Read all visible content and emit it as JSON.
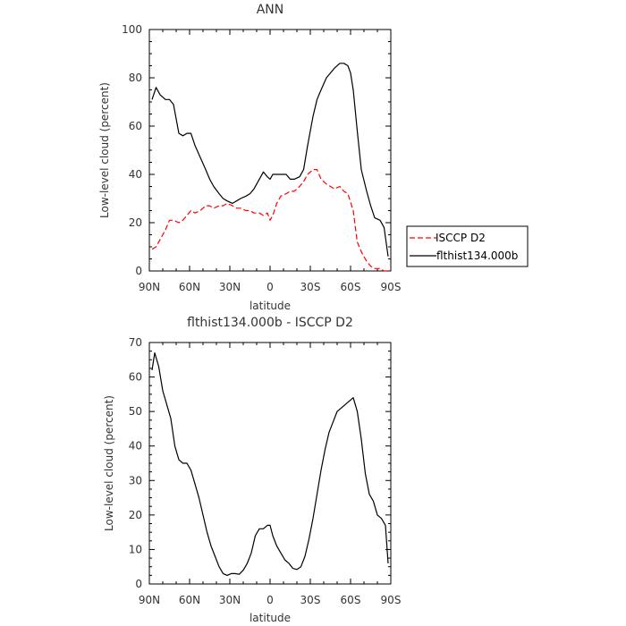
{
  "chart_data": [
    {
      "type": "line",
      "title": "ANN",
      "xlabel": "latitude",
      "ylabel": "Low-level cloud (percent)",
      "x_ticks": [
        "90N",
        "60N",
        "30N",
        "0",
        "30S",
        "60S",
        "90S"
      ],
      "x_tick_values": [
        90,
        60,
        30,
        0,
        -30,
        -60,
        -90
      ],
      "xlim": [
        90,
        -90
      ],
      "ylim": [
        0,
        100
      ],
      "y_ticks": [
        0,
        20,
        40,
        60,
        80,
        100
      ],
      "legend_position": "right",
      "series": [
        {
          "name": "ISCCP D2",
          "color": "#ff0000",
          "dash": "dashed",
          "x": [
            88,
            85,
            82,
            78,
            75,
            72,
            68,
            65,
            62,
            59,
            56,
            52,
            48,
            45,
            42,
            38,
            35,
            32,
            28,
            25,
            22,
            18,
            15,
            12,
            8,
            5,
            2,
            0,
            -2,
            -5,
            -8,
            -12,
            -15,
            -18,
            -22,
            -25,
            -28,
            -32,
            -35,
            -38,
            -42,
            -45,
            -48,
            -52,
            -55,
            -58,
            -62,
            -65,
            -68,
            -72,
            -75,
            -78,
            -82,
            -85,
            -88
          ],
          "y": [
            9,
            10,
            13,
            17,
            21,
            21,
            20,
            21,
            23,
            25,
            24,
            25,
            27,
            27,
            26,
            27,
            27,
            28,
            27,
            26,
            26,
            25,
            25,
            24,
            24,
            23,
            24,
            21,
            23,
            28,
            31,
            32,
            33,
            33,
            35,
            37,
            40,
            42,
            42,
            38,
            36,
            35,
            34,
            35,
            33,
            32,
            25,
            12,
            8,
            4,
            2,
            1,
            1,
            0,
            0
          ]
        },
        {
          "name": "flthist134.000b",
          "color": "#000000",
          "dash": "solid",
          "x": [
            88,
            85,
            82,
            78,
            75,
            72,
            68,
            65,
            62,
            59,
            56,
            52,
            48,
            45,
            42,
            38,
            35,
            32,
            28,
            25,
            22,
            18,
            15,
            12,
            10,
            8,
            5,
            2,
            0,
            -2,
            -5,
            -8,
            -12,
            -15,
            -18,
            -22,
            -25,
            -28,
            -32,
            -35,
            -38,
            -42,
            -45,
            -48,
            -52,
            -55,
            -58,
            -60,
            -62,
            -65,
            -68,
            -72,
            -75,
            -78,
            -82,
            -85,
            -88
          ],
          "y": [
            71,
            76,
            73,
            71,
            71,
            69,
            57,
            56,
            57,
            57,
            52,
            47,
            42,
            38,
            35,
            32,
            30,
            29,
            28,
            29,
            30,
            31,
            32,
            34,
            36,
            38,
            41,
            39,
            38,
            40,
            40,
            40,
            40,
            38,
            38,
            39,
            42,
            52,
            64,
            71,
            75,
            80,
            82,
            84,
            86,
            86,
            85,
            82,
            75,
            58,
            42,
            33,
            27,
            22,
            21,
            18,
            6
          ]
        }
      ]
    },
    {
      "type": "line",
      "title": "flthist134.000b - ISCCP D2",
      "xlabel": "latitude",
      "ylabel": "Low-level cloud (percent)",
      "x_ticks": [
        "90N",
        "60N",
        "30N",
        "0",
        "30S",
        "60S",
        "90S"
      ],
      "x_tick_values": [
        90,
        60,
        30,
        0,
        -30,
        -60,
        -90
      ],
      "xlim": [
        90,
        -90
      ],
      "ylim": [
        0,
        70
      ],
      "y_ticks": [
        0,
        10,
        20,
        30,
        40,
        50,
        60,
        70
      ],
      "series": [
        {
          "color": "#000000",
          "dash": "solid",
          "x": [
            88,
            86,
            83,
            80,
            77,
            74,
            71,
            68,
            65,
            62,
            59,
            56,
            53,
            50,
            47,
            44,
            41,
            38,
            35,
            32,
            29,
            26,
            23,
            20,
            17,
            14,
            11,
            8,
            5,
            2,
            0,
            -2,
            -5,
            -8,
            -11,
            -14,
            -17,
            -20,
            -23,
            -26,
            -29,
            -32,
            -35,
            -38,
            -41,
            -44,
            -47,
            -50,
            -53,
            -56,
            -59,
            -62,
            -65,
            -68,
            -71,
            -74,
            -77,
            -80,
            -83,
            -86,
            -88
          ],
          "y": [
            62,
            67,
            63,
            56,
            52,
            48,
            40,
            36,
            35,
            35,
            33,
            29,
            25,
            20,
            15,
            11,
            8,
            5,
            3,
            2.5,
            3,
            3,
            2.8,
            4,
            6,
            9,
            14,
            16,
            16,
            17,
            17,
            14,
            11,
            9,
            7,
            6,
            4.5,
            4.2,
            5,
            8,
            13,
            19,
            26,
            33,
            39,
            44,
            47,
            50,
            51,
            52,
            53,
            54,
            50,
            42,
            32,
            26,
            24,
            20,
            19,
            17,
            6
          ]
        }
      ]
    }
  ]
}
